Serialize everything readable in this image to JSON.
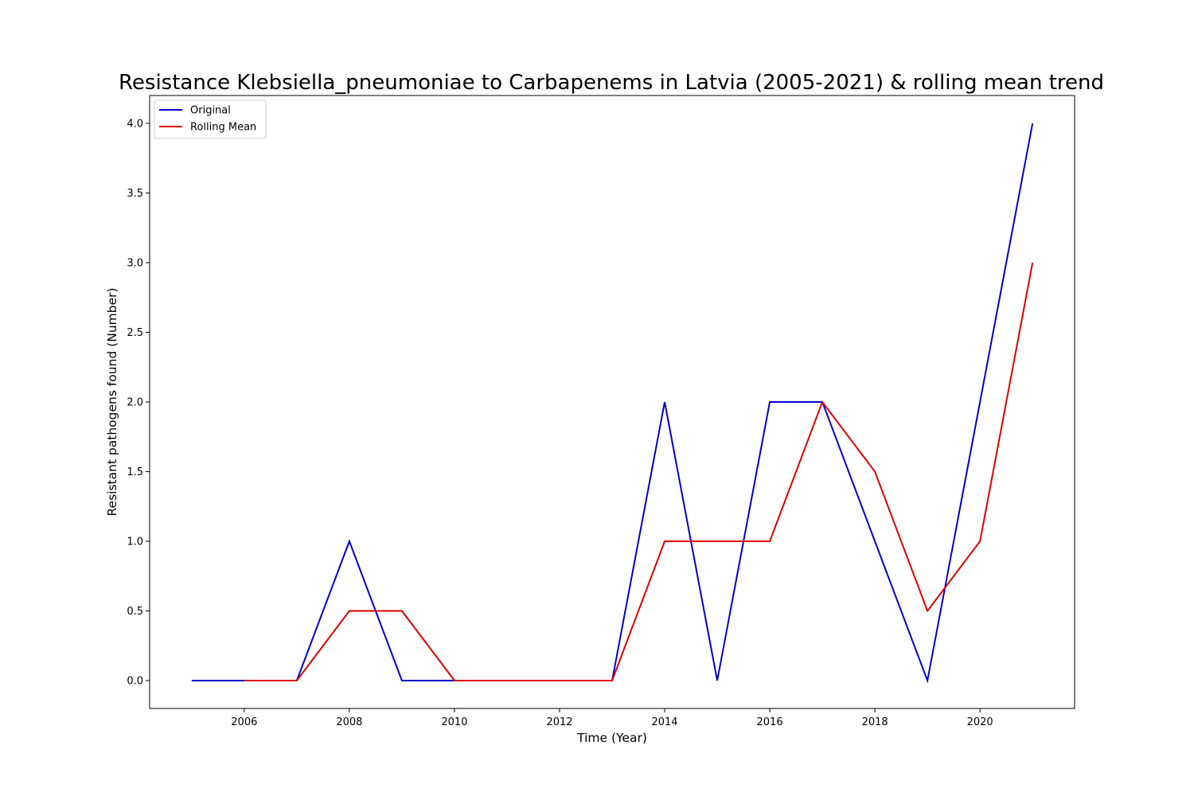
{
  "chart_data": {
    "type": "line",
    "title": "Resistance Klebsiella_pneumoniae to Carbapenems in Latvia (2005-2021) & rolling mean trend",
    "xlabel": "Time (Year)",
    "ylabel": "Resistant pathogens found (Number)",
    "x": [
      2005,
      2006,
      2007,
      2008,
      2009,
      2010,
      2011,
      2012,
      2013,
      2014,
      2015,
      2016,
      2017,
      2018,
      2019,
      2020,
      2021
    ],
    "series": [
      {
        "name": "Original",
        "color": "#0000cc",
        "values": [
          0,
          0,
          0,
          1,
          0,
          0,
          0,
          0,
          0,
          2,
          0,
          2,
          2,
          1,
          0,
          2,
          4
        ]
      },
      {
        "name": "Rolling Mean",
        "color": "#dd0000",
        "values": [
          null,
          0,
          0,
          0.5,
          0.5,
          0,
          0,
          0,
          0,
          1,
          1,
          1,
          2,
          1.5,
          0.5,
          1,
          3
        ]
      }
    ],
    "xlim": [
      2004.2,
      2021.8
    ],
    "ylim": [
      -0.2,
      4.2
    ],
    "xticks": [
      2006,
      2008,
      2010,
      2012,
      2014,
      2016,
      2018,
      2020
    ],
    "yticks": [
      0.0,
      0.5,
      1.0,
      1.5,
      2.0,
      2.5,
      3.0,
      3.5,
      4.0
    ],
    "grid": false,
    "legend_position": "top-left"
  }
}
